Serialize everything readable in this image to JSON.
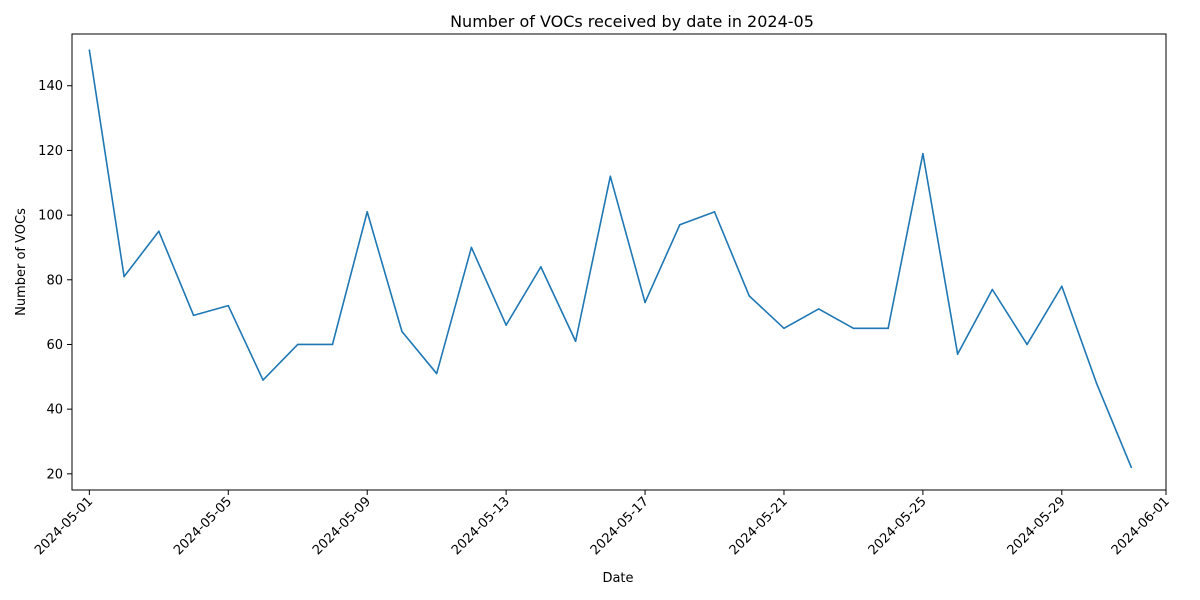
{
  "chart_data": {
    "type": "line",
    "title": "Number of VOCs received by date in 2024-05",
    "xlabel": "Date",
    "ylabel": "Number of VOCs",
    "x": [
      "2024-05-01",
      "2024-05-02",
      "2024-05-03",
      "2024-05-04",
      "2024-05-05",
      "2024-05-06",
      "2024-05-07",
      "2024-05-08",
      "2024-05-09",
      "2024-05-10",
      "2024-05-11",
      "2024-05-12",
      "2024-05-13",
      "2024-05-14",
      "2024-05-15",
      "2024-05-16",
      "2024-05-17",
      "2024-05-18",
      "2024-05-19",
      "2024-05-20",
      "2024-05-21",
      "2024-05-22",
      "2024-05-23",
      "2024-05-24",
      "2024-05-25",
      "2024-05-26",
      "2024-05-27",
      "2024-05-28",
      "2024-05-29",
      "2024-05-30",
      "2024-05-31"
    ],
    "series": [
      {
        "color": "#1f77b4",
        "values": [
          151,
          81,
          95,
          69,
          72,
          49,
          60,
          60,
          101,
          64,
          51,
          90,
          66,
          84,
          61,
          112,
          73,
          97,
          101,
          75,
          65,
          71,
          65,
          65,
          119,
          57,
          77,
          60,
          78,
          48,
          22
        ]
      }
    ],
    "xlim": [
      "2024-04-30",
      "2024-06-01"
    ],
    "ylim": [
      15,
      156
    ],
    "x_ticks": [
      "2024-05-01",
      "2024-05-05",
      "2024-05-09",
      "2024-05-13",
      "2024-05-17",
      "2024-05-21",
      "2024-05-25",
      "2024-05-29",
      "2024-06-01"
    ],
    "y_ticks": [
      20,
      40,
      60,
      80,
      100,
      120,
      140
    ],
    "grid": false,
    "legend": "none"
  }
}
